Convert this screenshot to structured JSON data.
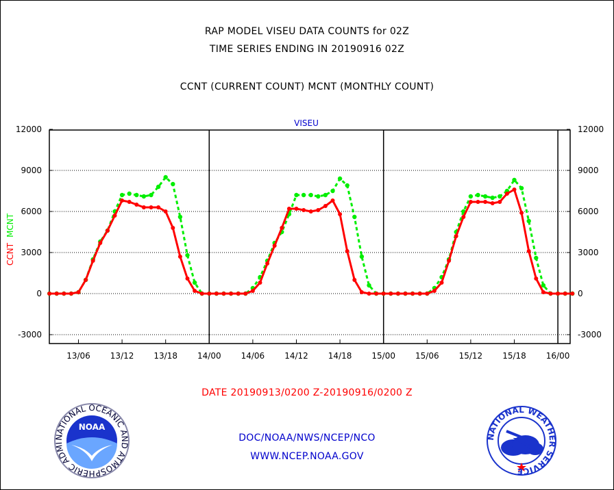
{
  "header": {
    "title_line1": "RAP MODEL VISEU DATA COUNTS for 02Z",
    "title_line2": "TIME SERIES ENDING IN 20190916 02Z",
    "title_line3": "CCNT (CURRENT COUNT) MCNT (MONTHLY COUNT)"
  },
  "footer": {
    "date_range": "DATE 20190913/0200 Z-20190916/0200 Z",
    "org_line": "DOC/NOAA/NWS/NCEP/NCO",
    "url": "WWW.NCEP.NOAA.GOV"
  },
  "logos": {
    "noaa_text": "NOAA",
    "noaa_ring": "NATIONAL OCEANIC AND ATMOSPHERIC ADMINISTRATION · U.S. DEPARTMENT OF COMMERCE",
    "nws_ring": "NATIONAL WEATHER SERVICE"
  },
  "colors": {
    "ccnt": "#ff0000",
    "mcnt": "#00ee00",
    "accent_blue": "#0000cc"
  },
  "chart_data": {
    "type": "line",
    "title": "VISEU",
    "ylabel_left_parts": [
      "CCNT",
      "MCNT"
    ],
    "ylim": [
      -3500,
      12000
    ],
    "yticks": [
      -3000,
      0,
      3000,
      6000,
      9000,
      12000
    ],
    "xlim": [
      -2,
      72
    ],
    "xticks": [
      {
        "x": 4,
        "label": "13/06"
      },
      {
        "x": 10,
        "label": "13/12"
      },
      {
        "x": 16,
        "label": "13/18"
      },
      {
        "x": 22,
        "label": "14/00"
      },
      {
        "x": 28,
        "label": "14/06"
      },
      {
        "x": 34,
        "label": "14/12"
      },
      {
        "x": 40,
        "label": "14/18"
      },
      {
        "x": 46,
        "label": "15/00"
      },
      {
        "x": 52,
        "label": "15/06"
      },
      {
        "x": 58,
        "label": "15/12"
      },
      {
        "x": 64,
        "label": "15/18"
      },
      {
        "x": 70,
        "label": "16/00"
      }
    ],
    "day_dividers": [
      22,
      46,
      70
    ],
    "grid": "horizontal dotted",
    "series": [
      {
        "name": "CCNT",
        "values": [
          0,
          0,
          0,
          0,
          100,
          1000,
          2400,
          3700,
          4600,
          5700,
          6800,
          6700,
          6500,
          6300,
          6300,
          6300,
          6000,
          4800,
          2700,
          1100,
          200,
          0,
          0,
          0,
          0,
          0,
          0,
          0,
          200,
          800,
          2200,
          3500,
          4800,
          6200,
          6200,
          6100,
          6000,
          6100,
          6400,
          6800,
          5800,
          3100,
          1000,
          100,
          0,
          0,
          0,
          0,
          0,
          0,
          0,
          0,
          0,
          200,
          800,
          2400,
          4200,
          5600,
          6700,
          6700,
          6700,
          6600,
          6700,
          7300,
          7600,
          5900,
          3100,
          1100,
          100,
          0,
          0,
          0,
          0
        ]
      },
      {
        "name": "MCNT",
        "values": [
          0,
          0,
          0,
          0,
          100,
          1000,
          2500,
          3800,
          4600,
          6000,
          7200,
          7300,
          7200,
          7100,
          7200,
          7800,
          8500,
          8000,
          5600,
          2800,
          800,
          0,
          0,
          0,
          0,
          0,
          0,
          0,
          400,
          1200,
          2400,
          3700,
          4500,
          5800,
          7200,
          7200,
          7200,
          7100,
          7200,
          7500,
          8400,
          7900,
          5600,
          2700,
          600,
          0,
          0,
          0,
          0,
          0,
          0,
          0,
          0,
          400,
          1200,
          2500,
          4500,
          6000,
          7100,
          7200,
          7100,
          7000,
          7100,
          7500,
          8300,
          7700,
          5300,
          2600,
          600,
          0,
          0,
          0,
          0
        ]
      }
    ]
  }
}
